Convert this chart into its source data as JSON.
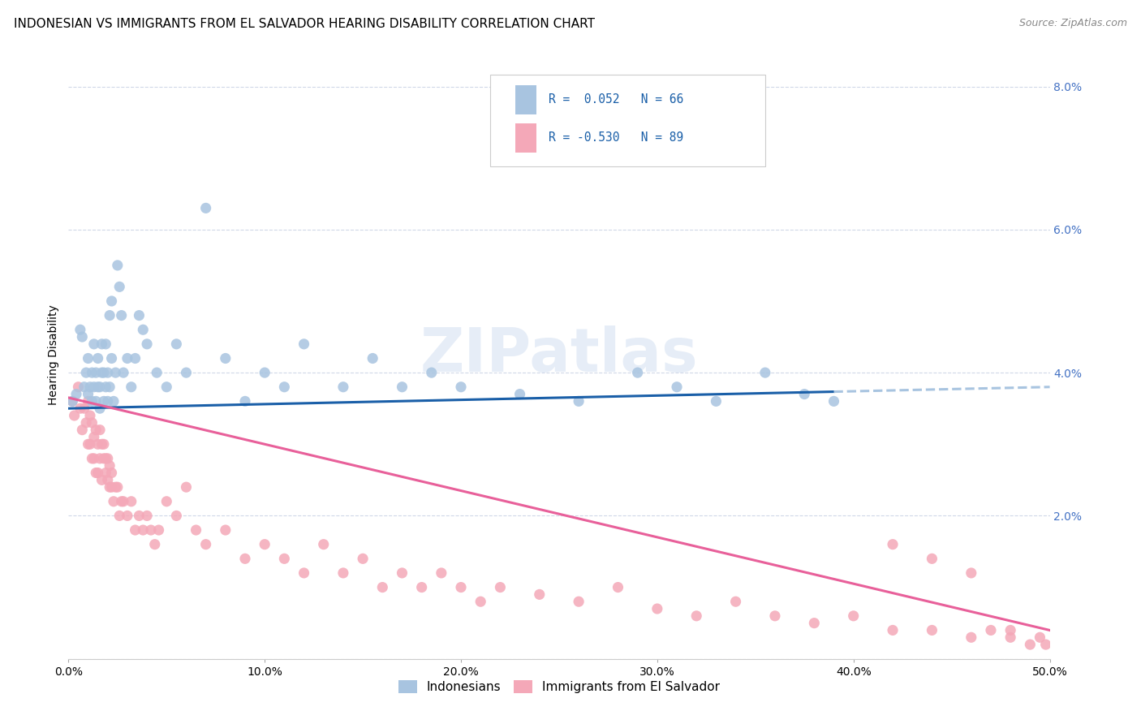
{
  "title": "INDONESIAN VS IMMIGRANTS FROM EL SALVADOR HEARING DISABILITY CORRELATION CHART",
  "source": "Source: ZipAtlas.com",
  "ylabel": "Hearing Disability",
  "xlim": [
    0.0,
    0.5
  ],
  "ylim": [
    0.0,
    0.085
  ],
  "yticks": [
    0.0,
    0.02,
    0.04,
    0.06,
    0.08
  ],
  "ytick_labels": [
    "",
    "2.0%",
    "4.0%",
    "6.0%",
    "8.0%"
  ],
  "xticks": [
    0.0,
    0.1,
    0.2,
    0.3,
    0.4,
    0.5
  ],
  "xtick_labels": [
    "0.0%",
    "10.0%",
    "20.0%",
    "30.0%",
    "40.0%",
    "50.0%"
  ],
  "blue_R": 0.052,
  "blue_N": 66,
  "pink_R": -0.53,
  "pink_N": 89,
  "blue_color": "#a8c4e0",
  "pink_color": "#f4a8b8",
  "blue_line_color": "#1a5fa8",
  "pink_line_color": "#e8609a",
  "blue_line_dashed_color": "#a8c4e0",
  "watermark": "ZIPatlas",
  "legend_label_blue": "Indonesians",
  "legend_label_pink": "Immigrants from El Salvador",
  "blue_scatter_x": [
    0.002,
    0.004,
    0.006,
    0.007,
    0.008,
    0.009,
    0.01,
    0.01,
    0.011,
    0.012,
    0.012,
    0.013,
    0.013,
    0.014,
    0.014,
    0.015,
    0.015,
    0.016,
    0.016,
    0.017,
    0.017,
    0.018,
    0.018,
    0.019,
    0.019,
    0.02,
    0.02,
    0.021,
    0.021,
    0.022,
    0.022,
    0.023,
    0.024,
    0.025,
    0.026,
    0.027,
    0.028,
    0.03,
    0.032,
    0.034,
    0.036,
    0.038,
    0.04,
    0.045,
    0.05,
    0.055,
    0.06,
    0.07,
    0.08,
    0.09,
    0.1,
    0.11,
    0.12,
    0.14,
    0.155,
    0.17,
    0.185,
    0.2,
    0.23,
    0.26,
    0.29,
    0.31,
    0.33,
    0.355,
    0.375,
    0.39
  ],
  "blue_scatter_y": [
    0.036,
    0.037,
    0.046,
    0.045,
    0.038,
    0.04,
    0.037,
    0.042,
    0.038,
    0.036,
    0.04,
    0.038,
    0.044,
    0.04,
    0.036,
    0.038,
    0.042,
    0.035,
    0.038,
    0.04,
    0.044,
    0.036,
    0.04,
    0.038,
    0.044,
    0.036,
    0.04,
    0.048,
    0.038,
    0.042,
    0.05,
    0.036,
    0.04,
    0.055,
    0.052,
    0.048,
    0.04,
    0.042,
    0.038,
    0.042,
    0.048,
    0.046,
    0.044,
    0.04,
    0.038,
    0.044,
    0.04,
    0.063,
    0.042,
    0.036,
    0.04,
    0.038,
    0.044,
    0.038,
    0.042,
    0.038,
    0.04,
    0.038,
    0.037,
    0.036,
    0.04,
    0.038,
    0.036,
    0.04,
    0.037,
    0.036
  ],
  "pink_scatter_x": [
    0.002,
    0.003,
    0.005,
    0.006,
    0.007,
    0.008,
    0.009,
    0.01,
    0.01,
    0.011,
    0.011,
    0.012,
    0.012,
    0.013,
    0.013,
    0.014,
    0.014,
    0.015,
    0.015,
    0.016,
    0.016,
    0.017,
    0.017,
    0.018,
    0.018,
    0.019,
    0.019,
    0.02,
    0.02,
    0.021,
    0.021,
    0.022,
    0.022,
    0.023,
    0.024,
    0.025,
    0.026,
    0.027,
    0.028,
    0.03,
    0.032,
    0.034,
    0.036,
    0.038,
    0.04,
    0.042,
    0.044,
    0.046,
    0.05,
    0.055,
    0.06,
    0.065,
    0.07,
    0.08,
    0.09,
    0.1,
    0.11,
    0.12,
    0.13,
    0.14,
    0.15,
    0.16,
    0.17,
    0.18,
    0.19,
    0.2,
    0.21,
    0.22,
    0.24,
    0.26,
    0.28,
    0.3,
    0.32,
    0.34,
    0.36,
    0.38,
    0.4,
    0.42,
    0.44,
    0.46,
    0.47,
    0.48,
    0.49,
    0.495,
    0.498,
    0.42,
    0.44,
    0.46,
    0.48
  ],
  "pink_scatter_y": [
    0.036,
    0.034,
    0.038,
    0.035,
    0.032,
    0.035,
    0.033,
    0.036,
    0.03,
    0.034,
    0.03,
    0.033,
    0.028,
    0.031,
    0.028,
    0.032,
    0.026,
    0.03,
    0.026,
    0.032,
    0.028,
    0.03,
    0.025,
    0.028,
    0.03,
    0.026,
    0.028,
    0.025,
    0.028,
    0.024,
    0.027,
    0.024,
    0.026,
    0.022,
    0.024,
    0.024,
    0.02,
    0.022,
    0.022,
    0.02,
    0.022,
    0.018,
    0.02,
    0.018,
    0.02,
    0.018,
    0.016,
    0.018,
    0.022,
    0.02,
    0.024,
    0.018,
    0.016,
    0.018,
    0.014,
    0.016,
    0.014,
    0.012,
    0.016,
    0.012,
    0.014,
    0.01,
    0.012,
    0.01,
    0.012,
    0.01,
    0.008,
    0.01,
    0.009,
    0.008,
    0.01,
    0.007,
    0.006,
    0.008,
    0.006,
    0.005,
    0.006,
    0.004,
    0.004,
    0.003,
    0.004,
    0.003,
    0.002,
    0.003,
    0.002,
    0.016,
    0.014,
    0.012,
    0.004
  ],
  "grid_color": "#d0d8e8",
  "background_color": "#ffffff",
  "title_fontsize": 11,
  "source_fontsize": 9,
  "axis_label_fontsize": 10,
  "tick_fontsize": 10
}
